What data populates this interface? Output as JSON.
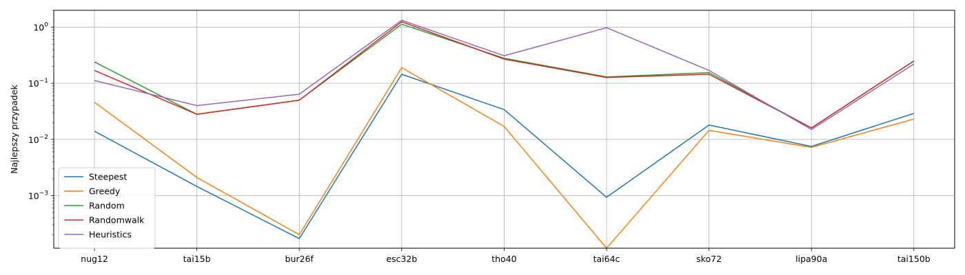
{
  "chart_data": {
    "type": "line",
    "title": "",
    "xlabel": "",
    "ylabel": "Najlepszy przypadek",
    "yscale": "log",
    "ylim": [
      0.000115,
      2.0
    ],
    "grid": true,
    "legend_position": "lower-left",
    "categories": [
      "nug12",
      "tai15b",
      "bur26f",
      "esc32b",
      "tho40",
      "tai64c",
      "sko72",
      "lipa90a",
      "tai150b"
    ],
    "y_ticks": [
      {
        "value": 0.001,
        "base": "10",
        "exp": "−3"
      },
      {
        "value": 0.01,
        "base": "10",
        "exp": "−2"
      },
      {
        "value": 0.1,
        "base": "10",
        "exp": "−1"
      },
      {
        "value": 1,
        "base": "10",
        "exp": "0"
      }
    ],
    "series": [
      {
        "name": "Steepest",
        "color": "#1f77b4",
        "values": [
          0.014,
          0.00145,
          0.00017,
          0.145,
          0.034,
          0.00093,
          0.018,
          0.0075,
          0.029
        ]
      },
      {
        "name": "Greedy",
        "color": "#ff7f0e",
        "values": [
          0.046,
          0.0021,
          0.0002,
          0.19,
          0.017,
          0,
          0.0145,
          0.0072,
          0.023
        ]
      },
      {
        "name": "Random",
        "color": "#2ca02c",
        "values": [
          0.24,
          0.028,
          0.05,
          1.13,
          0.28,
          0.13,
          0.155,
          0.016,
          0.25
        ]
      },
      {
        "name": "Randomwalk",
        "color": "#d62728",
        "values": [
          0.17,
          0.028,
          0.05,
          1.25,
          0.27,
          0.127,
          0.145,
          0.016,
          0.25
        ]
      },
      {
        "name": "Heuristics",
        "color": "#9467bd",
        "values": [
          0.112,
          0.04,
          0.064,
          1.33,
          0.31,
          0.98,
          0.17,
          0.015,
          0.22
        ]
      }
    ]
  }
}
